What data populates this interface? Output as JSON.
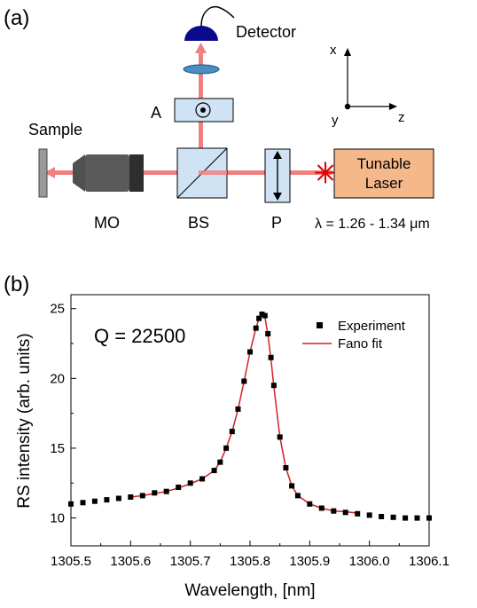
{
  "panel_a": {
    "label": "(a)",
    "detector_label": "Detector",
    "analyzer_label": "A",
    "sample_label": "Sample",
    "mo_label": "MO",
    "bs_label": "BS",
    "polarizer_label": "P",
    "laser_label_line1": "Tunable",
    "laser_label_line2": "Laser",
    "wavelength_label": "λ = 1.26 - 1.34 μm",
    "axis_x": "x",
    "axis_y": "y",
    "axis_z": "z",
    "colors": {
      "beam": "#f08080",
      "laser_box": "#f5b88a",
      "detector": "#0a0a8c",
      "optics": "#cfe3f5",
      "objective": "#505050",
      "lens": "#4a8fc0"
    }
  },
  "panel_b": {
    "label": "(b)",
    "annotation": "Q = 22500"
  },
  "chart_data": {
    "type": "scatter",
    "xlabel": "Wavelength, [nm]",
    "ylabel": "RS intensity (arb. units)",
    "xlim": [
      1305.5,
      1306.1
    ],
    "ylim": [
      8,
      26
    ],
    "xticks": [
      1305.5,
      1305.6,
      1305.7,
      1305.8,
      1305.9,
      1306.0,
      1306.1
    ],
    "xtick_labels": [
      "1305.5",
      "1305.6",
      "1305.7",
      "1305.8",
      "1305.9",
      "1306.0",
      "1306.1"
    ],
    "yticks": [
      10,
      15,
      20,
      25
    ],
    "ytick_labels": [
      "10",
      "15",
      "20",
      "25"
    ],
    "legend_position": "top-right",
    "grid": false,
    "series": [
      {
        "name": "Experiment",
        "kind": "markers",
        "color": "#000000",
        "x": [
          1305.5,
          1305.52,
          1305.54,
          1305.56,
          1305.58,
          1305.6,
          1305.62,
          1305.64,
          1305.66,
          1305.68,
          1305.7,
          1305.72,
          1305.74,
          1305.75,
          1305.76,
          1305.77,
          1305.78,
          1305.79,
          1305.8,
          1305.81,
          1305.815,
          1305.82,
          1305.825,
          1305.83,
          1305.835,
          1305.84,
          1305.85,
          1305.86,
          1305.87,
          1305.88,
          1305.9,
          1305.92,
          1305.94,
          1305.96,
          1305.98,
          1306.0,
          1306.02,
          1306.04,
          1306.06,
          1306.08,
          1306.1
        ],
        "y": [
          11.0,
          11.1,
          11.2,
          11.3,
          11.4,
          11.5,
          11.6,
          11.8,
          11.9,
          12.2,
          12.5,
          12.8,
          13.4,
          14.0,
          15.0,
          16.2,
          17.8,
          19.8,
          21.9,
          23.6,
          24.3,
          24.6,
          24.5,
          23.2,
          21.5,
          19.5,
          15.8,
          13.6,
          12.3,
          11.6,
          11.0,
          10.7,
          10.5,
          10.4,
          10.3,
          10.2,
          10.1,
          10.05,
          10.0,
          10.0,
          10.0
        ]
      },
      {
        "name": "Fano fit",
        "kind": "line",
        "color": "#d42020",
        "x": [
          1305.6,
          1305.62,
          1305.64,
          1305.66,
          1305.68,
          1305.7,
          1305.72,
          1305.74,
          1305.75,
          1305.76,
          1305.77,
          1305.78,
          1305.79,
          1305.8,
          1305.81,
          1305.815,
          1305.82,
          1305.825,
          1305.83,
          1305.835,
          1305.84,
          1305.85,
          1305.86,
          1305.87,
          1305.88,
          1305.9,
          1305.92,
          1305.94,
          1305.96,
          1305.98
        ],
        "y": [
          11.5,
          11.6,
          11.75,
          11.9,
          12.15,
          12.45,
          12.8,
          13.4,
          14.0,
          15.0,
          16.2,
          17.8,
          19.8,
          21.9,
          23.6,
          24.3,
          24.6,
          24.4,
          23.1,
          21.4,
          19.4,
          15.8,
          13.6,
          12.3,
          11.6,
          11.0,
          10.7,
          10.5,
          10.45,
          10.35
        ]
      }
    ]
  }
}
